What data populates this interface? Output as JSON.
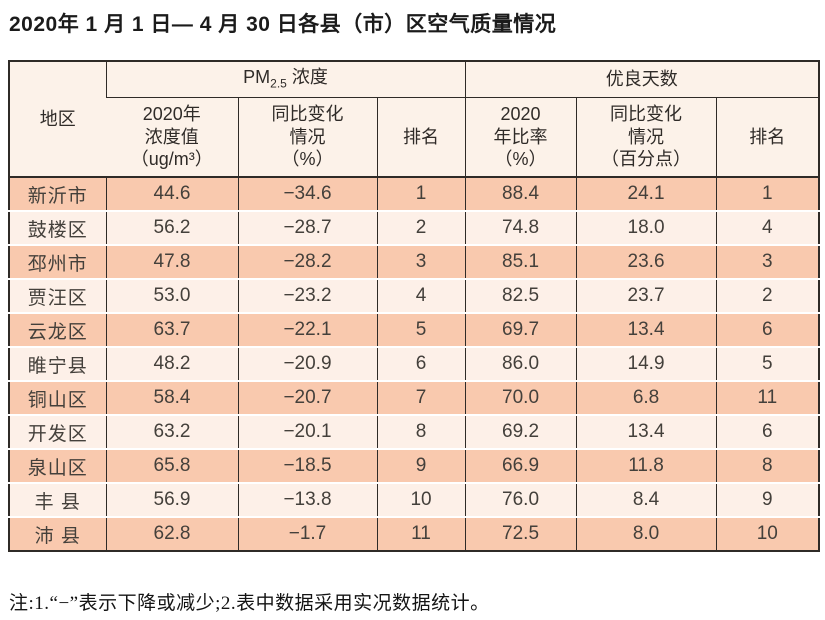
{
  "title": "2020年 1 月 1 日— 4 月 30 日各县（市）区空气质量情况",
  "note": "注:1.“−”表示下降或减少;2.表中数据采用实况数据统计。",
  "colors": {
    "border_dark": "#2f2b27",
    "header_bg": "#fcf2e9",
    "row_odd_bg": "#f9c9ae",
    "row_even_bg": "#fdf0e8",
    "text": "#44403b"
  },
  "table": {
    "region_header": "地区",
    "pm_group": {
      "base": "PM",
      "sub": "2.5",
      "rest": " 浓度"
    },
    "days_group": "优良天数",
    "sub_headers": {
      "pm_value": "2020年\n浓度值\n（ug/m³）",
      "pm_change": "同比变化\n情况\n（%）",
      "pm_rank": "排名",
      "days_rate": "2020\n年比率\n（%）",
      "days_change": "同比变化\n情况\n（百分点）",
      "days_rank": "排名"
    },
    "rows": [
      {
        "region": "新沂市",
        "pm_value": "44.6",
        "pm_change": "−34.6",
        "pm_rank": "1",
        "days_rate": "88.4",
        "days_change": "24.1",
        "days_rank": "1"
      },
      {
        "region": "鼓楼区",
        "pm_value": "56.2",
        "pm_change": "−28.7",
        "pm_rank": "2",
        "days_rate": "74.8",
        "days_change": "18.0",
        "days_rank": "4"
      },
      {
        "region": "邳州市",
        "pm_value": "47.8",
        "pm_change": "−28.2",
        "pm_rank": "3",
        "days_rate": "85.1",
        "days_change": "23.6",
        "days_rank": "3"
      },
      {
        "region": "贾汪区",
        "pm_value": "53.0",
        "pm_change": "−23.2",
        "pm_rank": "4",
        "days_rate": "82.5",
        "days_change": "23.7",
        "days_rank": "2"
      },
      {
        "region": "云龙区",
        "pm_value": "63.7",
        "pm_change": "−22.1",
        "pm_rank": "5",
        "days_rate": "69.7",
        "days_change": "13.4",
        "days_rank": "6"
      },
      {
        "region": "睢宁县",
        "pm_value": "48.2",
        "pm_change": "−20.9",
        "pm_rank": "6",
        "days_rate": "86.0",
        "days_change": "14.9",
        "days_rank": "5"
      },
      {
        "region": "铜山区",
        "pm_value": "58.4",
        "pm_change": "−20.7",
        "pm_rank": "7",
        "days_rate": "70.0",
        "days_change": "6.8",
        "days_rank": "11"
      },
      {
        "region": "开发区",
        "pm_value": "63.2",
        "pm_change": "−20.1",
        "pm_rank": "8",
        "days_rate": "69.2",
        "days_change": "13.4",
        "days_rank": "6"
      },
      {
        "region": "泉山区",
        "pm_value": "65.8",
        "pm_change": "−18.5",
        "pm_rank": "9",
        "days_rate": "66.9",
        "days_change": "11.8",
        "days_rank": "8"
      },
      {
        "region": "丰 县",
        "pm_value": "56.9",
        "pm_change": "−13.8",
        "pm_rank": "10",
        "days_rate": "76.0",
        "days_change": "8.4",
        "days_rank": "9"
      },
      {
        "region": "沛 县",
        "pm_value": "62.8",
        "pm_change": "−1.7",
        "pm_rank": "11",
        "days_rate": "72.5",
        "days_change": "8.0",
        "days_rank": "10"
      }
    ]
  }
}
